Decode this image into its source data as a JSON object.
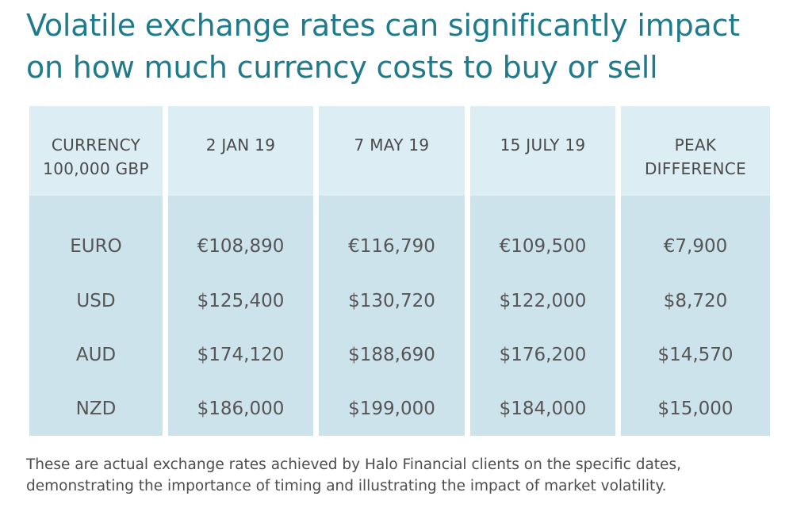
{
  "title": {
    "line1": "Volatile exchange rates can significantly impact",
    "line2": "on how much currency costs to buy or sell"
  },
  "table": {
    "headers": [
      [
        "CURRENCY",
        "100,000 GBP"
      ],
      [
        "2 JAN 19"
      ],
      [
        "7 MAY 19"
      ],
      [
        "15 JULY 19"
      ],
      [
        "PEAK",
        "DIFFERENCE"
      ]
    ],
    "rows": [
      [
        "EURO",
        "€108,890",
        "€116,790",
        "€109,500",
        "€7,900"
      ],
      [
        "USD",
        "$125,400",
        "$130,720",
        "$122,000",
        "$8,720"
      ],
      [
        "AUD",
        "$174,120",
        "$188,690",
        "$176,200",
        "$14,570"
      ],
      [
        "NZD",
        "$186,000",
        "$199,000",
        "$184,000",
        "$15,000"
      ]
    ]
  },
  "footnote": {
    "line1": "These are actual exchange rates achieved by Halo Financial clients on the specific dates,",
    "line2": "demonstrating the importance of timing and illustrating the impact of market volatility."
  },
  "colors": {
    "title": "#1f7a8c",
    "header_bg": "#ddedf4",
    "body_bg": "#cde3ec",
    "text": "#4a4a4a"
  },
  "chart_data": {
    "type": "table",
    "title": "Volatile exchange rates can significantly impact on how much currency costs to buy or sell",
    "columns": [
      "CURRENCY 100,000 GBP",
      "2 JAN 19",
      "7 MAY 19",
      "15 JULY 19",
      "PEAK DIFFERENCE"
    ],
    "rows": [
      {
        "currency": "EURO",
        "2 JAN 19": 108890,
        "7 MAY 19": 116790,
        "15 JULY 19": 109500,
        "PEAK DIFFERENCE": 7900
      },
      {
        "currency": "USD",
        "2 JAN 19": 125400,
        "7 MAY 19": 130720,
        "15 JULY 19": 122000,
        "PEAK DIFFERENCE": 8720
      },
      {
        "currency": "AUD",
        "2 JAN 19": 174120,
        "7 MAY 19": 188690,
        "15 JULY 19": 176200,
        "PEAK DIFFERENCE": 14570
      },
      {
        "currency": "NZD",
        "2 JAN 19": 186000,
        "7 MAY 19": 199000,
        "15 JULY 19": 184000,
        "PEAK DIFFERENCE": 15000
      }
    ]
  }
}
